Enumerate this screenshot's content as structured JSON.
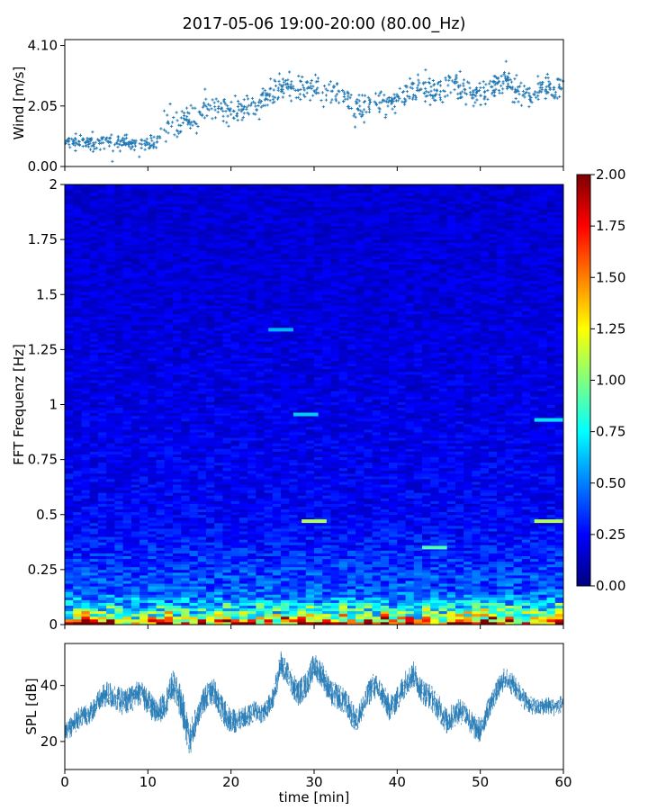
{
  "title": "2017-05-06 19:00-20:00 (80.00_Hz)",
  "chart_data": [
    {
      "type": "scatter",
      "name": "wind",
      "xlim": [
        0,
        60
      ],
      "ylim": [
        0,
        4.3
      ],
      "ylabel": "Wind [m/s]",
      "yticks": [
        "0.00",
        "2.05",
        "4.10"
      ],
      "ytick_values": [
        0,
        2.05,
        4.1
      ],
      "color": "#1f77b4",
      "x": [
        0,
        1,
        2,
        3,
        4,
        5,
        6,
        7,
        8,
        9,
        10,
        11,
        12,
        13,
        14,
        15,
        16,
        17,
        18,
        19,
        20,
        21,
        22,
        23,
        24,
        25,
        26,
        27,
        28,
        29,
        30,
        31,
        32,
        33,
        34,
        35,
        36,
        37,
        38,
        39,
        40,
        41,
        42,
        43,
        44,
        45,
        46,
        47,
        48,
        49,
        50,
        51,
        52,
        53,
        54,
        55,
        56,
        57,
        58,
        59,
        60
      ],
      "y": [
        0.8,
        0.8,
        0.85,
        0.75,
        0.8,
        0.85,
        0.9,
        0.8,
        0.75,
        0.8,
        0.8,
        0.85,
        1.2,
        1.4,
        1.5,
        1.6,
        1.7,
        1.9,
        2.1,
        2.0,
        1.8,
        1.9,
        2.0,
        2.1,
        2.3,
        2.5,
        2.7,
        2.8,
        2.7,
        2.6,
        2.7,
        2.5,
        2.6,
        2.5,
        2.2,
        2.0,
        1.9,
        2.3,
        2.2,
        2.0,
        2.3,
        2.5,
        2.6,
        2.7,
        2.6,
        2.5,
        2.8,
        3.0,
        2.6,
        2.4,
        2.5,
        2.6,
        2.8,
        2.9,
        2.7,
        2.5,
        2.4,
        2.6,
        2.7,
        2.6,
        2.7
      ]
    },
    {
      "type": "heatmap",
      "name": "spectrogram",
      "xlim": [
        0,
        60
      ],
      "ylim": [
        0,
        2
      ],
      "ylabel": "FFT Frequenz [Hz]",
      "yticks": [
        "0",
        "0.25",
        "0.5",
        "0.75",
        "1",
        "1.25",
        "1.5",
        "1.75",
        "2"
      ],
      "ytick_values": [
        0,
        0.25,
        0.5,
        0.75,
        1,
        1.25,
        1.5,
        1.75,
        2
      ],
      "colormap": "jet",
      "colorbar": {
        "range": [
          0,
          2
        ],
        "ticks": [
          "0.00",
          "0.25",
          "0.50",
          "0.75",
          "1.00",
          "1.25",
          "1.50",
          "1.75",
          "2.00"
        ],
        "tick_values": [
          0,
          0.25,
          0.5,
          0.75,
          1,
          1.25,
          1.5,
          1.75,
          2
        ]
      },
      "typical_level_by_frequency": {
        "freq_hz": [
          0,
          0.02,
          0.05,
          0.1,
          0.15,
          0.25,
          0.35,
          0.5,
          1.0,
          1.5,
          2.0
        ],
        "level": [
          1.7,
          1.3,
          0.9,
          0.6,
          0.42,
          0.36,
          0.3,
          0.24,
          0.2,
          0.18,
          0.17
        ]
      },
      "highlights": [
        {
          "x": [
            24.5,
            27.5
          ],
          "freq_hz": 1.34,
          "level": 0.6
        },
        {
          "x": [
            27.5,
            30.5
          ],
          "freq_hz": 0.955,
          "level": 0.65
        },
        {
          "x": [
            28.5,
            31.5
          ],
          "freq_hz": 0.47,
          "level": 1.1
        },
        {
          "x": [
            56.5,
            60
          ],
          "freq_hz": 0.47,
          "level": 1.1
        },
        {
          "x": [
            56.5,
            60
          ],
          "freq_hz": 0.93,
          "level": 0.7
        },
        {
          "x": [
            43,
            46
          ],
          "freq_hz": 0.35,
          "level": 0.9
        }
      ]
    },
    {
      "type": "area",
      "name": "spl",
      "xlim": [
        0,
        60
      ],
      "ylim": [
        10,
        55
      ],
      "xlabel": "time [min]",
      "ylabel": "SPL [dB]",
      "xticks": [
        "0",
        "10",
        "20",
        "30",
        "40",
        "50",
        "60"
      ],
      "xtick_values": [
        0,
        10,
        20,
        30,
        40,
        50,
        60
      ],
      "yticks": [
        "20",
        "40"
      ],
      "ytick_values": [
        20,
        40
      ],
      "color": "#1f77b4",
      "x": [
        0,
        1,
        2,
        3,
        4,
        5,
        6,
        7,
        8,
        9,
        10,
        11,
        12,
        13,
        14,
        15,
        16,
        17,
        18,
        19,
        20,
        21,
        22,
        23,
        24,
        25,
        26,
        27,
        28,
        29,
        30,
        31,
        32,
        33,
        34,
        35,
        36,
        37,
        38,
        39,
        40,
        41,
        42,
        43,
        44,
        45,
        46,
        47,
        48,
        49,
        50,
        51,
        52,
        53,
        54,
        55,
        56,
        57,
        58,
        59,
        60
      ],
      "mean": [
        24,
        26,
        29,
        30,
        34,
        37,
        36,
        34,
        35,
        38,
        34,
        30,
        33,
        40,
        34,
        20,
        30,
        36,
        38,
        31,
        27,
        28,
        29,
        31,
        30,
        35,
        48,
        43,
        37,
        40,
        47,
        44,
        37,
        36,
        33,
        27,
        33,
        40,
        38,
        32,
        35,
        41,
        44,
        38,
        36,
        32,
        27,
        30,
        31,
        26,
        24,
        32,
        38,
        43,
        40,
        36,
        33,
        32,
        33,
        32,
        34
      ],
      "spread": [
        5,
        5,
        5,
        5,
        5,
        6,
        6,
        6,
        6,
        6,
        6,
        6,
        6,
        7,
        8,
        8,
        6,
        6,
        6,
        6,
        6,
        5,
        5,
        5,
        5,
        5,
        6,
        6,
        6,
        6,
        6,
        6,
        6,
        6,
        6,
        6,
        6,
        6,
        6,
        6,
        6,
        6,
        6,
        6,
        6,
        6,
        6,
        6,
        6,
        6,
        6,
        5,
        5,
        5,
        5,
        5,
        4,
        4,
        4,
        4,
        4
      ]
    }
  ]
}
